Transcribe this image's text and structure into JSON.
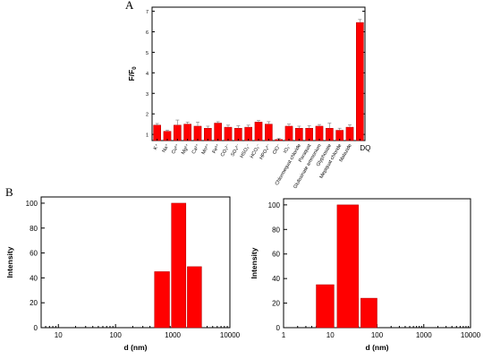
{
  "panel_labels": {
    "a": "A",
    "b": "B"
  },
  "chart_data": [
    {
      "id": "A",
      "type": "bar",
      "ylabel": "F/F0",
      "ylabel_main": "F/F",
      "ylabel_sub": "0",
      "ylim": [
        0.7,
        7.2
      ],
      "yticks": [
        1,
        2,
        3,
        4,
        5,
        6,
        7
      ],
      "categories": [
        "K⁺",
        "Na⁺",
        "Cu²⁺",
        "Mg²⁺",
        "Ca²⁺",
        "Mn²⁺",
        "Fe³⁺",
        "CO₃²⁻",
        "SO₄²⁻",
        "HSO₃⁻",
        "HCO₃⁻",
        "HPO₄²⁻",
        "ClO⁻",
        "IO₃⁻",
        "Chlormequat chloride",
        "Paraquat",
        "Glufosinate ammonium",
        "Glyphosate",
        "Mepiquat chloride",
        "Malazide",
        "DQ"
      ],
      "values": [
        1.45,
        1.15,
        1.45,
        1.5,
        1.4,
        1.3,
        1.55,
        1.35,
        1.3,
        1.35,
        1.6,
        1.5,
        0.75,
        1.4,
        1.3,
        1.3,
        1.4,
        1.3,
        1.2,
        1.35,
        6.45
      ],
      "errors": [
        0.08,
        0.06,
        0.25,
        0.1,
        0.2,
        0.1,
        0.07,
        0.1,
        0.12,
        0.1,
        0.08,
        0.12,
        0.05,
        0.1,
        0.1,
        0.12,
        0.08,
        0.25,
        0.1,
        0.12,
        0.15
      ]
    },
    {
      "id": "B-left",
      "type": "bar",
      "xscale": "log",
      "xlabel": "d (nm)",
      "ylabel": "Intensity",
      "xlim": [
        5,
        10000
      ],
      "ylim": [
        0,
        105
      ],
      "xticks": [
        "10",
        "100",
        "1000",
        "10000"
      ],
      "yticks": [
        0,
        20,
        40,
        60,
        80,
        100
      ],
      "bars": [
        {
          "x_range": [
            480,
            880
          ],
          "value": 45
        },
        {
          "x_range": [
            950,
            1700
          ],
          "value": 100
        },
        {
          "x_range": [
            1800,
            3200
          ],
          "value": 49
        }
      ]
    },
    {
      "id": "B-right",
      "type": "bar",
      "xscale": "log",
      "xlabel": "d (nm)",
      "ylabel": "Intensity",
      "xlim": [
        1,
        10000
      ],
      "ylim": [
        0,
        105
      ],
      "xticks": [
        "1",
        "10",
        "100",
        "1000",
        "10000"
      ],
      "yticks": [
        0,
        20,
        40,
        60,
        80,
        100
      ],
      "bars": [
        {
          "x_range": [
            5,
            12
          ],
          "value": 35
        },
        {
          "x_range": [
            14,
            40
          ],
          "value": 100
        },
        {
          "x_range": [
            45,
            100
          ],
          "value": 24
        }
      ]
    }
  ]
}
